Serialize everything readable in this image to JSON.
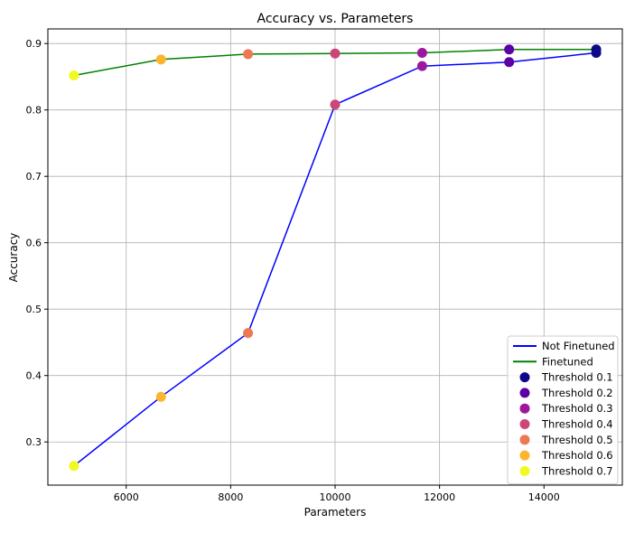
{
  "chart_data": {
    "type": "line",
    "title": "Accuracy vs. Parameters",
    "xlabel": "Parameters",
    "ylabel": "Accuracy",
    "xlim": [
      4500,
      15500
    ],
    "ylim": [
      0.235,
      0.922
    ],
    "xticks": [
      6000,
      8000,
      10000,
      12000,
      14000
    ],
    "yticks": [
      0.3,
      0.4,
      0.5,
      0.6,
      0.7,
      0.8,
      0.9
    ],
    "grid": true,
    "legend_position": "lower-right",
    "series": [
      {
        "name": "Not Finetuned",
        "color": "#0000ff",
        "x": [
          5000,
          6667,
          8333,
          10000,
          11667,
          13333,
          15000
        ],
        "y": [
          0.264,
          0.368,
          0.464,
          0.808,
          0.866,
          0.872,
          0.886
        ]
      },
      {
        "name": "Finetuned",
        "color": "#008000",
        "x": [
          5000,
          6667,
          8333,
          10000,
          11667,
          13333,
          15000
        ],
        "y": [
          0.852,
          0.876,
          0.884,
          0.885,
          0.886,
          0.891,
          0.891
        ]
      }
    ],
    "thresholds": [
      {
        "name": "Threshold 0.1",
        "color": "#0d0887",
        "x": 15000,
        "y_nf": 0.886,
        "y_ft": 0.891
      },
      {
        "name": "Threshold 0.2",
        "color": "#5c01a6",
        "x": 13333,
        "y_nf": 0.872,
        "y_ft": 0.891
      },
      {
        "name": "Threshold 0.3",
        "color": "#9c179e",
        "x": 11667,
        "y_nf": 0.866,
        "y_ft": 0.886
      },
      {
        "name": "Threshold 0.4",
        "color": "#cc4778",
        "x": 10000,
        "y_nf": 0.808,
        "y_ft": 0.885
      },
      {
        "name": "Threshold 0.5",
        "color": "#ed7953",
        "x": 8333,
        "y_nf": 0.464,
        "y_ft": 0.884
      },
      {
        "name": "Threshold 0.6",
        "color": "#fdb42f",
        "x": 6667,
        "y_nf": 0.368,
        "y_ft": 0.876
      },
      {
        "name": "Threshold 0.7",
        "color": "#f0f921",
        "x": 5000,
        "y_nf": 0.264,
        "y_ft": 0.852
      }
    ]
  }
}
